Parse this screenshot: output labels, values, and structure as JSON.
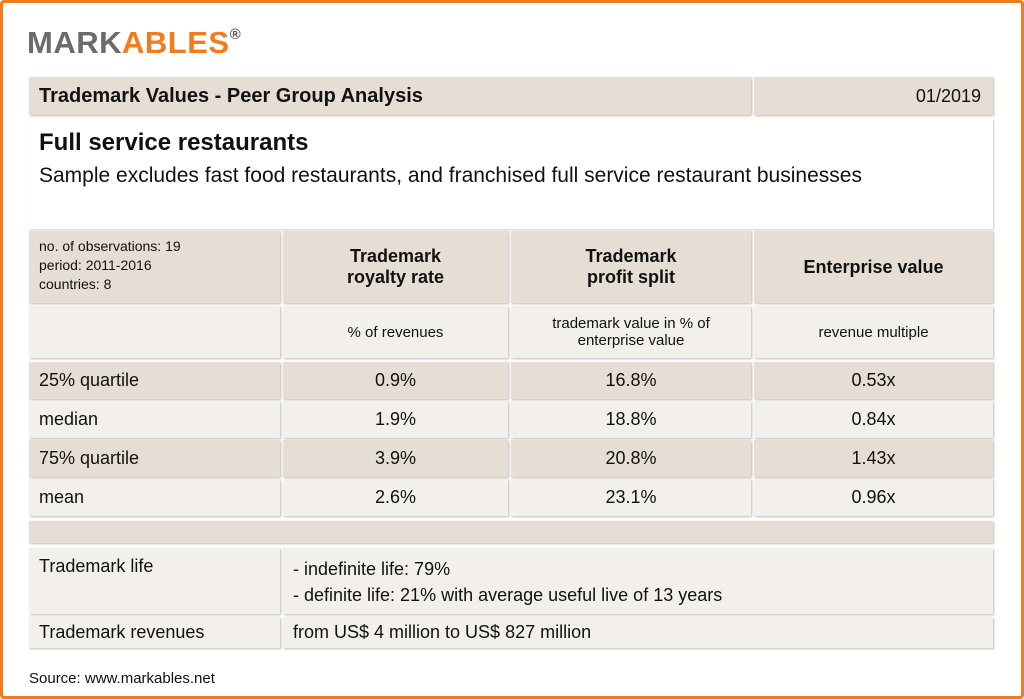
{
  "logo": {
    "dark": "MARK",
    "accent": "ABLES",
    "mark": "®"
  },
  "header": {
    "title": "Trademark Values  - Peer Group Analysis",
    "date": "01/2019"
  },
  "section": {
    "title": "Full service restaurants",
    "subtitle": "Sample excludes fast food restaurants, and franchised full service restaurant businesses"
  },
  "table": {
    "meta": [
      "no. of observations: 19",
      "period: 2011-2016",
      "countries: 8"
    ],
    "columns": [
      "Trademark royalty rate",
      "Trademark profit split",
      "Enterprise value"
    ],
    "units": [
      "% of revenues",
      "trademark value in % of enterprise value",
      "revenue multiple"
    ],
    "rows": [
      [
        "25% quartile",
        "0.9%",
        "16.8%",
        "0.53x"
      ],
      [
        "median",
        "1.9%",
        "18.8%",
        "0.84x"
      ],
      [
        "75% quartile",
        "3.9%",
        "20.8%",
        "1.43x"
      ],
      [
        "mean",
        "2.6%",
        "23.1%",
        "0.96x"
      ]
    ]
  },
  "details": [
    {
      "label": "Trademark life",
      "lines": [
        "- indefinite life: 79%",
        "- definite life: 21% with average useful live of 13 years"
      ]
    },
    {
      "label": "Trademark revenues",
      "lines": [
        "from US$ 4 million to US$ 827 million"
      ]
    }
  ],
  "source": "Source: www.markables.net"
}
